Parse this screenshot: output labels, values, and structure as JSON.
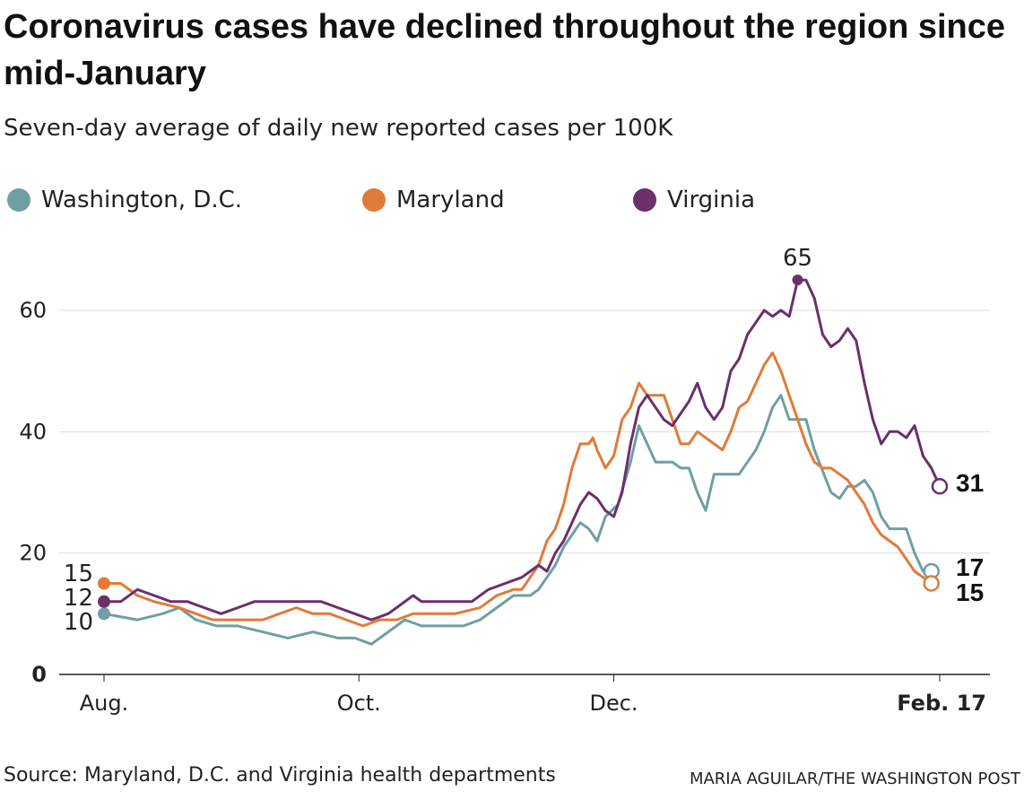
{
  "header": {
    "title": "Coronavirus cases have declined throughout the region since mid-January",
    "subtitle": "Seven-day average of daily new reported cases per 100K"
  },
  "footer": {
    "source": "Source: Maryland, D.C. and Virginia health departments",
    "credit": "MARIA AGUILAR/THE WASHINGTON POST"
  },
  "chart_data": {
    "type": "line",
    "ylim": [
      0,
      70
    ],
    "yticks": [
      {
        "value": 0,
        "label": "0"
      },
      {
        "value": 20,
        "label": "20"
      },
      {
        "value": 40,
        "label": "40"
      },
      {
        "value": 60,
        "label": "60"
      }
    ],
    "xticks": [
      {
        "x": 0,
        "label": "Aug."
      },
      {
        "x": 61,
        "label": "Oct."
      },
      {
        "x": 122,
        "label": "Dec."
      },
      {
        "x": 200,
        "label": "Feb. 17"
      }
    ],
    "grid": true,
    "legend_position": "top",
    "series": [
      {
        "name": "Washington, D.C.",
        "color": "#6f9fa3",
        "start_label": "10",
        "end_label": "17",
        "points": [
          [
            0,
            10
          ],
          [
            8,
            9
          ],
          [
            14,
            10
          ],
          [
            18,
            11
          ],
          [
            22,
            9
          ],
          [
            27,
            8
          ],
          [
            32,
            8
          ],
          [
            38,
            7
          ],
          [
            44,
            6
          ],
          [
            50,
            7
          ],
          [
            56,
            6
          ],
          [
            60,
            6
          ],
          [
            64,
            5
          ],
          [
            68,
            7
          ],
          [
            72,
            9
          ],
          [
            76,
            8
          ],
          [
            82,
            8
          ],
          [
            86,
            8
          ],
          [
            90,
            9
          ],
          [
            94,
            11
          ],
          [
            98,
            13
          ],
          [
            102,
            13
          ],
          [
            104,
            14
          ],
          [
            108,
            18
          ],
          [
            110,
            21
          ],
          [
            112,
            23
          ],
          [
            114,
            25
          ],
          [
            116,
            24
          ],
          [
            118,
            22
          ],
          [
            120,
            26
          ],
          [
            123,
            28
          ],
          [
            126,
            35
          ],
          [
            128,
            41
          ],
          [
            130,
            38
          ],
          [
            132,
            35
          ],
          [
            136,
            35
          ],
          [
            138,
            34
          ],
          [
            140,
            34
          ],
          [
            142,
            30
          ],
          [
            144,
            27
          ],
          [
            146,
            33
          ],
          [
            148,
            33
          ],
          [
            150,
            33
          ],
          [
            152,
            33
          ],
          [
            154,
            35
          ],
          [
            156,
            37
          ],
          [
            158,
            40
          ],
          [
            160,
            44
          ],
          [
            162,
            46
          ],
          [
            164,
            42
          ],
          [
            168,
            42
          ],
          [
            170,
            37
          ],
          [
            174,
            30
          ],
          [
            176,
            29
          ],
          [
            178,
            31
          ],
          [
            180,
            31
          ],
          [
            182,
            32
          ],
          [
            184,
            30
          ],
          [
            186,
            26
          ],
          [
            188,
            24
          ],
          [
            192,
            24
          ],
          [
            194,
            20
          ],
          [
            196,
            17
          ],
          [
            198,
            17
          ]
        ]
      },
      {
        "name": "Maryland",
        "color": "#e07b39",
        "start_label": "15",
        "end_label": "15",
        "points": [
          [
            0,
            15
          ],
          [
            4,
            15
          ],
          [
            8,
            13
          ],
          [
            12,
            12
          ],
          [
            18,
            11
          ],
          [
            22,
            10
          ],
          [
            26,
            9
          ],
          [
            30,
            9
          ],
          [
            34,
            9
          ],
          [
            38,
            9
          ],
          [
            42,
            10
          ],
          [
            46,
            11
          ],
          [
            50,
            10
          ],
          [
            54,
            10
          ],
          [
            58,
            9
          ],
          [
            62,
            8
          ],
          [
            66,
            9
          ],
          [
            70,
            9
          ],
          [
            74,
            10
          ],
          [
            78,
            10
          ],
          [
            84,
            10
          ],
          [
            90,
            11
          ],
          [
            94,
            13
          ],
          [
            98,
            14
          ],
          [
            100,
            14
          ],
          [
            102,
            16
          ],
          [
            104,
            18
          ],
          [
            106,
            22
          ],
          [
            108,
            24
          ],
          [
            110,
            28
          ],
          [
            112,
            34
          ],
          [
            114,
            38
          ],
          [
            116,
            38
          ],
          [
            117,
            39
          ],
          [
            118,
            37
          ],
          [
            120,
            34
          ],
          [
            122,
            36
          ],
          [
            124,
            42
          ],
          [
            126,
            44
          ],
          [
            128,
            48
          ],
          [
            130,
            46
          ],
          [
            134,
            46
          ],
          [
            136,
            42
          ],
          [
            138,
            38
          ],
          [
            140,
            38
          ],
          [
            142,
            40
          ],
          [
            144,
            39
          ],
          [
            146,
            38
          ],
          [
            148,
            37
          ],
          [
            150,
            40
          ],
          [
            152,
            44
          ],
          [
            154,
            45
          ],
          [
            156,
            48
          ],
          [
            158,
            51
          ],
          [
            160,
            53
          ],
          [
            162,
            50
          ],
          [
            164,
            46
          ],
          [
            166,
            42
          ],
          [
            168,
            38
          ],
          [
            170,
            35
          ],
          [
            172,
            34
          ],
          [
            174,
            34
          ],
          [
            176,
            33
          ],
          [
            178,
            32
          ],
          [
            182,
            28
          ],
          [
            184,
            25
          ],
          [
            186,
            23
          ],
          [
            188,
            22
          ],
          [
            190,
            21
          ],
          [
            192,
            19
          ],
          [
            194,
            17
          ],
          [
            196,
            16
          ],
          [
            198,
            15
          ]
        ]
      },
      {
        "name": "Virginia",
        "color": "#6b2f6b",
        "start_label": "12",
        "end_label": "31",
        "peak_label": "65",
        "points": [
          [
            0,
            12
          ],
          [
            4,
            12
          ],
          [
            8,
            14
          ],
          [
            12,
            13
          ],
          [
            16,
            12
          ],
          [
            20,
            12
          ],
          [
            24,
            11
          ],
          [
            28,
            10
          ],
          [
            32,
            11
          ],
          [
            36,
            12
          ],
          [
            40,
            12
          ],
          [
            44,
            12
          ],
          [
            48,
            12
          ],
          [
            52,
            12
          ],
          [
            56,
            11
          ],
          [
            60,
            10
          ],
          [
            64,
            9
          ],
          [
            68,
            10
          ],
          [
            70,
            11
          ],
          [
            72,
            12
          ],
          [
            74,
            13
          ],
          [
            76,
            12
          ],
          [
            80,
            12
          ],
          [
            84,
            12
          ],
          [
            88,
            12
          ],
          [
            92,
            14
          ],
          [
            96,
            15
          ],
          [
            100,
            16
          ],
          [
            102,
            17
          ],
          [
            104,
            18
          ],
          [
            106,
            17
          ],
          [
            108,
            20
          ],
          [
            110,
            22
          ],
          [
            112,
            25
          ],
          [
            114,
            28
          ],
          [
            116,
            30
          ],
          [
            118,
            29
          ],
          [
            120,
            27
          ],
          [
            122,
            26
          ],
          [
            124,
            30
          ],
          [
            126,
            38
          ],
          [
            128,
            44
          ],
          [
            130,
            46
          ],
          [
            132,
            44
          ],
          [
            134,
            42
          ],
          [
            136,
            41
          ],
          [
            138,
            43
          ],
          [
            140,
            45
          ],
          [
            142,
            48
          ],
          [
            144,
            44
          ],
          [
            146,
            42
          ],
          [
            148,
            44
          ],
          [
            150,
            50
          ],
          [
            152,
            52
          ],
          [
            154,
            56
          ],
          [
            156,
            58
          ],
          [
            158,
            60
          ],
          [
            160,
            59
          ],
          [
            162,
            60
          ],
          [
            164,
            59
          ],
          [
            166,
            65
          ],
          [
            168,
            65
          ],
          [
            170,
            62
          ],
          [
            172,
            56
          ],
          [
            174,
            54
          ],
          [
            176,
            55
          ],
          [
            178,
            57
          ],
          [
            180,
            55
          ],
          [
            182,
            48
          ],
          [
            184,
            42
          ],
          [
            186,
            38
          ],
          [
            188,
            40
          ],
          [
            190,
            40
          ],
          [
            192,
            39
          ],
          [
            194,
            41
          ],
          [
            196,
            36
          ],
          [
            198,
            34
          ],
          [
            200,
            31
          ]
        ]
      }
    ]
  }
}
